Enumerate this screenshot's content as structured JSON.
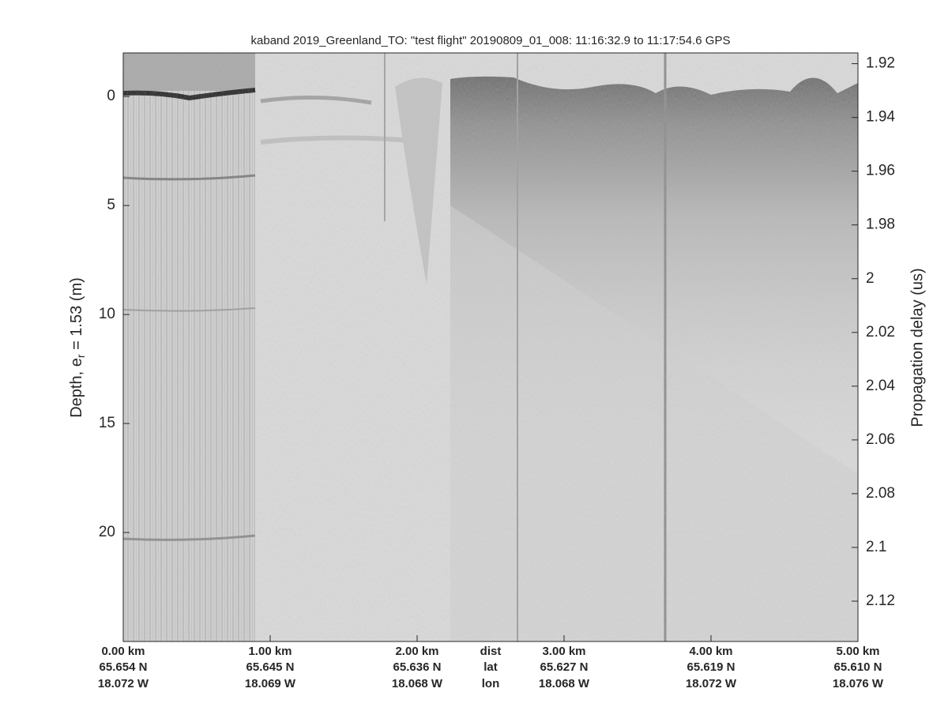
{
  "chart_data": {
    "type": "echogram",
    "title": "kaband 2019_Greenland_TO: \"test flight\"  20190809_01_008: 11:16:32.9 to 11:17:54.6 GPS",
    "ylabel": {
      "text": "Depth, e",
      "subscript": "r",
      "suffix": " = 1.53 (m)"
    },
    "y2label": "Propagation delay (us)",
    "ylim": [
      -2,
      25
    ],
    "yticks": [
      0,
      5,
      10,
      15,
      20
    ],
    "y2lim": [
      1.916,
      2.135
    ],
    "y2ticks": [
      1.92,
      1.94,
      1.96,
      1.98,
      2,
      2.02,
      2.04,
      2.06,
      2.08,
      2.1,
      2.12
    ],
    "xlim": [
      0,
      5
    ],
    "xticks": [
      {
        "value": 0,
        "label": "0.00 km"
      },
      {
        "value": 1,
        "label": "1.00 km"
      },
      {
        "value": 2,
        "label": "2.00 km"
      },
      {
        "value": 3,
        "label": "3.00 km"
      },
      {
        "value": 4,
        "label": "4.00 km"
      },
      {
        "value": 5,
        "label": "5.00 km"
      }
    ],
    "lat_labels": [
      "65.654 N",
      "65.645 N",
      "65.636 N",
      "65.627 N",
      "65.619 N",
      "65.610 N"
    ],
    "lon_labels": [
      "18.072 W",
      "18.069 W",
      "18.068 W",
      "18.068 W",
      "18.072 W",
      "18.076 W"
    ],
    "row_labels": [
      "dist",
      "lat",
      "lon"
    ]
  }
}
